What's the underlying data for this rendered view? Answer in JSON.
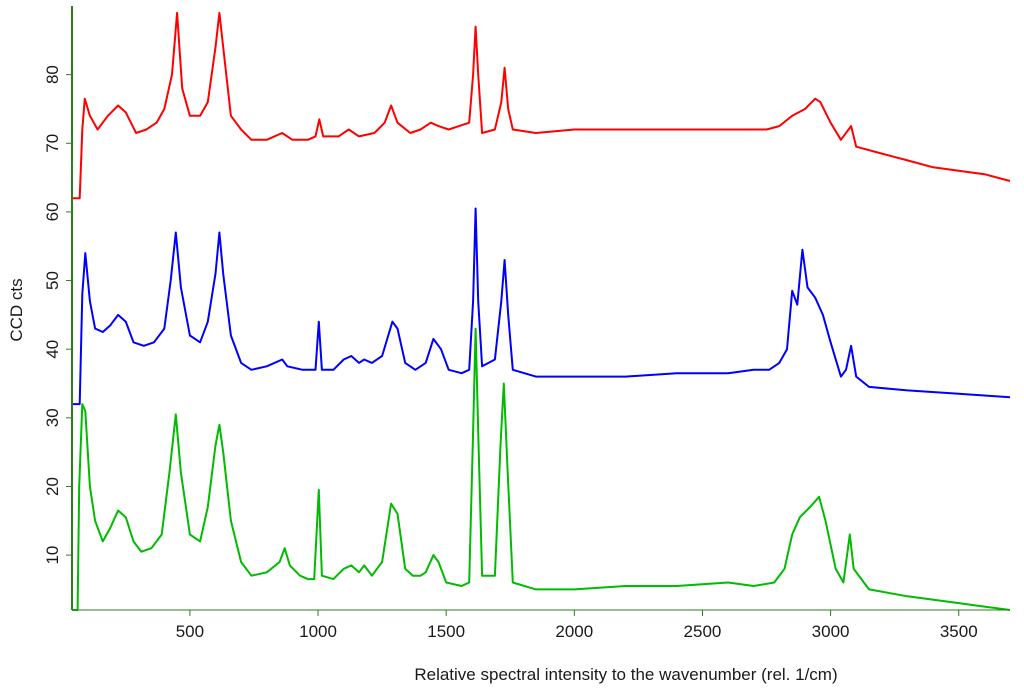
{
  "chart_data": {
    "type": "line",
    "title": "",
    "xlabel": "Relative spectral intensity to the wavenumber (rel. 1/cm)",
    "ylabel": "CCD cts",
    "xlim": [
      40,
      3700
    ],
    "ylim": [
      2,
      90
    ],
    "grid": false,
    "legend": "none",
    "x_ticks": [
      500,
      1000,
      1500,
      2000,
      2500,
      3000,
      3500
    ],
    "y_ticks": [
      10,
      20,
      30,
      40,
      50,
      60,
      70,
      80
    ],
    "axis_color": "#2e7d1e",
    "series": [
      {
        "color": "#ff0000",
        "points": [
          [
            40,
            62
          ],
          [
            70,
            62
          ],
          [
            80,
            72
          ],
          [
            90,
            76.5
          ],
          [
            110,
            74
          ],
          [
            140,
            72
          ],
          [
            180,
            74
          ],
          [
            220,
            75.5
          ],
          [
            250,
            74.5
          ],
          [
            290,
            71.5
          ],
          [
            330,
            72
          ],
          [
            370,
            73
          ],
          [
            400,
            75
          ],
          [
            430,
            80
          ],
          [
            450,
            89
          ],
          [
            470,
            78
          ],
          [
            500,
            74
          ],
          [
            540,
            74
          ],
          [
            570,
            76
          ],
          [
            600,
            84
          ],
          [
            615,
            89
          ],
          [
            630,
            84
          ],
          [
            660,
            74
          ],
          [
            700,
            72
          ],
          [
            740,
            70.5
          ],
          [
            800,
            70.5
          ],
          [
            860,
            71.5
          ],
          [
            900,
            70.5
          ],
          [
            960,
            70.5
          ],
          [
            990,
            71
          ],
          [
            1005,
            73.5
          ],
          [
            1020,
            71
          ],
          [
            1080,
            71
          ],
          [
            1120,
            72
          ],
          [
            1160,
            71
          ],
          [
            1220,
            71.5
          ],
          [
            1260,
            73
          ],
          [
            1285,
            75.5
          ],
          [
            1310,
            73
          ],
          [
            1360,
            71.5
          ],
          [
            1400,
            72
          ],
          [
            1440,
            73
          ],
          [
            1470,
            72.5
          ],
          [
            1510,
            72
          ],
          [
            1550,
            72.5
          ],
          [
            1590,
            73
          ],
          [
            1605,
            80
          ],
          [
            1615,
            87
          ],
          [
            1625,
            80
          ],
          [
            1640,
            71.5
          ],
          [
            1690,
            72
          ],
          [
            1715,
            76
          ],
          [
            1728,
            81
          ],
          [
            1742,
            75
          ],
          [
            1760,
            72
          ],
          [
            1850,
            71.5
          ],
          [
            2000,
            72
          ],
          [
            2200,
            72
          ],
          [
            2400,
            72
          ],
          [
            2600,
            72
          ],
          [
            2750,
            72
          ],
          [
            2800,
            72.5
          ],
          [
            2850,
            74
          ],
          [
            2900,
            75
          ],
          [
            2940,
            76.5
          ],
          [
            2960,
            76
          ],
          [
            3000,
            73
          ],
          [
            3040,
            70.5
          ],
          [
            3080,
            72.5
          ],
          [
            3100,
            69.5
          ],
          [
            3200,
            68.5
          ],
          [
            3300,
            67.5
          ],
          [
            3400,
            66.5
          ],
          [
            3500,
            66
          ],
          [
            3600,
            65.5
          ],
          [
            3700,
            64.5
          ]
        ]
      },
      {
        "color": "#0000ff",
        "points": [
          [
            40,
            32
          ],
          [
            70,
            32
          ],
          [
            80,
            48
          ],
          [
            92,
            54
          ],
          [
            110,
            47
          ],
          [
            130,
            43
          ],
          [
            160,
            42.5
          ],
          [
            190,
            43.5
          ],
          [
            220,
            45
          ],
          [
            250,
            44
          ],
          [
            280,
            41
          ],
          [
            320,
            40.5
          ],
          [
            360,
            41
          ],
          [
            400,
            43
          ],
          [
            425,
            50
          ],
          [
            445,
            57
          ],
          [
            465,
            49
          ],
          [
            500,
            42
          ],
          [
            540,
            41
          ],
          [
            570,
            44
          ],
          [
            600,
            51
          ],
          [
            615,
            57
          ],
          [
            630,
            51
          ],
          [
            660,
            42
          ],
          [
            700,
            38
          ],
          [
            740,
            37
          ],
          [
            800,
            37.5
          ],
          [
            860,
            38.5
          ],
          [
            880,
            37.5
          ],
          [
            940,
            37
          ],
          [
            990,
            37
          ],
          [
            1003,
            44
          ],
          [
            1015,
            37
          ],
          [
            1060,
            37
          ],
          [
            1100,
            38.5
          ],
          [
            1130,
            39
          ],
          [
            1160,
            38
          ],
          [
            1180,
            38.5
          ],
          [
            1210,
            38
          ],
          [
            1250,
            39
          ],
          [
            1290,
            44
          ],
          [
            1310,
            43
          ],
          [
            1340,
            38
          ],
          [
            1380,
            37
          ],
          [
            1420,
            38
          ],
          [
            1450,
            41.5
          ],
          [
            1480,
            40
          ],
          [
            1510,
            37
          ],
          [
            1560,
            36.5
          ],
          [
            1590,
            37
          ],
          [
            1605,
            47
          ],
          [
            1615,
            60.5
          ],
          [
            1625,
            47
          ],
          [
            1640,
            37.5
          ],
          [
            1690,
            38.5
          ],
          [
            1715,
            47
          ],
          [
            1728,
            53
          ],
          [
            1742,
            45
          ],
          [
            1760,
            37
          ],
          [
            1850,
            36
          ],
          [
            2000,
            36
          ],
          [
            2200,
            36
          ],
          [
            2400,
            36.5
          ],
          [
            2600,
            36.5
          ],
          [
            2700,
            37
          ],
          [
            2760,
            37
          ],
          [
            2800,
            38
          ],
          [
            2830,
            40
          ],
          [
            2850,
            48.5
          ],
          [
            2870,
            46.5
          ],
          [
            2890,
            54.5
          ],
          [
            2910,
            49
          ],
          [
            2940,
            47.5
          ],
          [
            2970,
            45
          ],
          [
            3000,
            41
          ],
          [
            3040,
            36
          ],
          [
            3060,
            37
          ],
          [
            3080,
            40.5
          ],
          [
            3100,
            36
          ],
          [
            3150,
            34.5
          ],
          [
            3300,
            34
          ],
          [
            3500,
            33.5
          ],
          [
            3700,
            33
          ]
        ]
      },
      {
        "color": "#00bb00",
        "points": [
          [
            40,
            2
          ],
          [
            62,
            2
          ],
          [
            68,
            20
          ],
          [
            80,
            32
          ],
          [
            92,
            31
          ],
          [
            110,
            20
          ],
          [
            130,
            15
          ],
          [
            160,
            12
          ],
          [
            190,
            14
          ],
          [
            220,
            16.5
          ],
          [
            250,
            15.5
          ],
          [
            280,
            12
          ],
          [
            310,
            10.5
          ],
          [
            350,
            11
          ],
          [
            390,
            13
          ],
          [
            420,
            22
          ],
          [
            445,
            30.5
          ],
          [
            465,
            22
          ],
          [
            500,
            13
          ],
          [
            540,
            12
          ],
          [
            570,
            17
          ],
          [
            600,
            26
          ],
          [
            615,
            29
          ],
          [
            630,
            25
          ],
          [
            660,
            15
          ],
          [
            700,
            9
          ],
          [
            740,
            7
          ],
          [
            800,
            7.5
          ],
          [
            850,
            9
          ],
          [
            870,
            11
          ],
          [
            890,
            8.5
          ],
          [
            930,
            7
          ],
          [
            960,
            6.5
          ],
          [
            985,
            6.5
          ],
          [
            1003,
            19.5
          ],
          [
            1015,
            7
          ],
          [
            1060,
            6.5
          ],
          [
            1100,
            8
          ],
          [
            1130,
            8.5
          ],
          [
            1160,
            7.5
          ],
          [
            1180,
            8.5
          ],
          [
            1210,
            7
          ],
          [
            1250,
            9
          ],
          [
            1285,
            17.5
          ],
          [
            1310,
            16
          ],
          [
            1340,
            8
          ],
          [
            1370,
            7
          ],
          [
            1400,
            7
          ],
          [
            1420,
            7.5
          ],
          [
            1450,
            10
          ],
          [
            1470,
            9
          ],
          [
            1500,
            6
          ],
          [
            1560,
            5.5
          ],
          [
            1590,
            6
          ],
          [
            1605,
            28
          ],
          [
            1615,
            43
          ],
          [
            1625,
            28
          ],
          [
            1640,
            7
          ],
          [
            1690,
            7
          ],
          [
            1712,
            26
          ],
          [
            1725,
            35
          ],
          [
            1740,
            22
          ],
          [
            1760,
            6
          ],
          [
            1850,
            5
          ],
          [
            2000,
            5
          ],
          [
            2200,
            5.5
          ],
          [
            2400,
            5.5
          ],
          [
            2600,
            6
          ],
          [
            2700,
            5.5
          ],
          [
            2780,
            6
          ],
          [
            2820,
            8
          ],
          [
            2850,
            13
          ],
          [
            2880,
            15.5
          ],
          [
            2920,
            17
          ],
          [
            2955,
            18.5
          ],
          [
            2980,
            15
          ],
          [
            3020,
            8
          ],
          [
            3050,
            6
          ],
          [
            3075,
            13
          ],
          [
            3090,
            8
          ],
          [
            3150,
            5
          ],
          [
            3300,
            4
          ],
          [
            3500,
            3
          ],
          [
            3600,
            2.5
          ],
          [
            3700,
            2
          ]
        ]
      }
    ]
  }
}
